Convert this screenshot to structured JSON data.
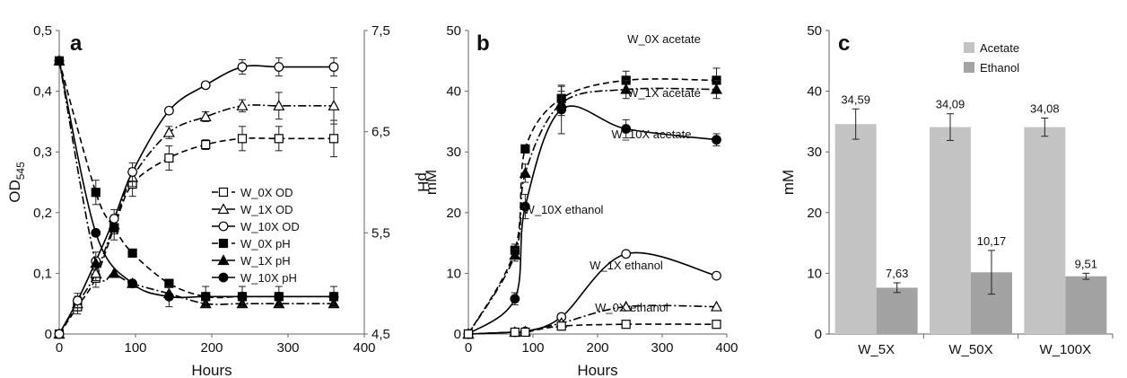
{
  "chart_data": [
    {
      "panel": "a",
      "type": "line",
      "xlabel": "Hours",
      "ylabel": "OD",
      "ylabel_sub": "545",
      "y2label": "pH",
      "xlim": [
        0,
        400
      ],
      "xticks": [
        "0",
        "100",
        "200",
        "300",
        "400"
      ],
      "ylim": [
        0,
        0.5
      ],
      "yticks": [
        "0",
        "0,1",
        "0,2",
        "0,3",
        "0,4",
        "0,5"
      ],
      "y2lim": [
        4.5,
        7.5
      ],
      "y2ticks": [
        "4,5",
        "5,5",
        "6,5",
        "7,5"
      ],
      "legend_position": "center-right",
      "series": [
        {
          "name": "W_0X OD",
          "axis": "left",
          "marker": "open-square",
          "dash": "dashed",
          "x": [
            0,
            24,
            48,
            72,
            96,
            144,
            192,
            240,
            288,
            360
          ],
          "y": [
            0,
            0.045,
            0.092,
            0.175,
            0.247,
            0.29,
            0.312,
            0.322,
            0.322,
            0.322
          ],
          "err": [
            0,
            0.012,
            0.015,
            0.02,
            0.02,
            0.02,
            0.008,
            0.02,
            0.02,
            0.03
          ]
        },
        {
          "name": "W_1X OD",
          "axis": "left",
          "marker": "open-triangle",
          "dash": "dashdot",
          "x": [
            0,
            24,
            48,
            72,
            96,
            144,
            192,
            240,
            288,
            360
          ],
          "y": [
            0,
            0.05,
            0.1,
            0.18,
            0.258,
            0.332,
            0.358,
            0.376,
            0.376,
            0.376
          ],
          "err": [
            0,
            0.012,
            0.012,
            0.015,
            0.015,
            0.01,
            0.008,
            0.01,
            0.022,
            0.03
          ]
        },
        {
          "name": "W_10X OD",
          "axis": "left",
          "marker": "open-circle",
          "dash": "solid",
          "x": [
            0,
            24,
            48,
            72,
            96,
            144,
            192,
            240,
            288,
            360
          ],
          "y": [
            0,
            0.055,
            0.12,
            0.19,
            0.267,
            0.368,
            0.41,
            0.44,
            0.44,
            0.44
          ],
          "err": [
            0,
            0.012,
            0.015,
            0.015,
            0.015,
            0.005,
            0.005,
            0.012,
            0.015,
            0.015
          ]
        },
        {
          "name": "W_0X pH",
          "axis": "right",
          "marker": "filled-square",
          "dash": "dashed",
          "x": [
            0,
            48,
            72,
            96,
            144,
            192,
            240,
            288,
            360
          ],
          "y": [
            7.2,
            5.9,
            5.55,
            5.3,
            5.0,
            4.87,
            4.87,
            4.87,
            4.87
          ],
          "err": [
            0,
            0.12,
            0,
            0,
            0,
            0,
            0,
            0,
            0
          ]
        },
        {
          "name": "W_1X pH",
          "axis": "right",
          "marker": "filled-triangle",
          "dash": "dashdot",
          "x": [
            0,
            48,
            72,
            96,
            144,
            192,
            240,
            288,
            360
          ],
          "y": [
            7.2,
            5.2,
            5.1,
            5.0,
            4.9,
            4.8,
            4.8,
            4.8,
            4.8
          ],
          "err": [
            0,
            0,
            0,
            0,
            0,
            0,
            0,
            0,
            0
          ]
        },
        {
          "name": "W_10X pH",
          "axis": "right",
          "marker": "filled-circle",
          "dash": "solid",
          "x": [
            0,
            48,
            96,
            144,
            192,
            240,
            288,
            360
          ],
          "y": [
            7.2,
            5.5,
            5.0,
            4.87,
            4.87,
            4.87,
            4.87,
            4.87
          ],
          "err": [
            0,
            0,
            0,
            0.1,
            0.1,
            0.1,
            0.1,
            0.1
          ]
        }
      ]
    },
    {
      "panel": "b",
      "type": "line",
      "xlabel": "Hours",
      "ylabel": "mM",
      "xlim": [
        0,
        400
      ],
      "xticks": [
        "0",
        "100",
        "200",
        "300",
        "400"
      ],
      "ylim": [
        0,
        50
      ],
      "yticks": [
        "0",
        "10",
        "20",
        "30",
        "40",
        "50"
      ],
      "series": [
        {
          "name": "W_0X acetate",
          "marker": "filled-square",
          "dash": "dashed",
          "x": [
            0,
            72,
            88,
            144,
            244,
            384
          ],
          "y": [
            0,
            13.8,
            30.5,
            38.8,
            41.8,
            41.8
          ],
          "err": [
            0,
            1.0,
            0,
            2.0,
            1.5,
            2.0
          ]
        },
        {
          "name": "W_1X acetate",
          "marker": "filled-triangle",
          "dash": "dashdot",
          "x": [
            0,
            72,
            88,
            144,
            244,
            384
          ],
          "y": [
            0,
            13.0,
            26.5,
            38.0,
            40.3,
            40.3
          ],
          "err": [
            0,
            1.0,
            1.5,
            2.0,
            1.5,
            1.5
          ]
        },
        {
          "name": "W_10X acetate",
          "marker": "filled-circle",
          "dash": "solid",
          "x": [
            0,
            72,
            88,
            144,
            244,
            384
          ],
          "y": [
            0,
            5.8,
            21.0,
            37.0,
            33.8,
            32.0
          ],
          "err": [
            0,
            1.0,
            2.0,
            4.0,
            1.5,
            1.0
          ]
        },
        {
          "name": "W_10X ethanol",
          "marker": "open-circle",
          "dash": "solid",
          "x": [
            0,
            72,
            88,
            144,
            244,
            384
          ],
          "y": [
            0,
            0.3,
            0.4,
            2.8,
            13.2,
            9.6
          ],
          "err": [
            0,
            0.5,
            0.5,
            0.5,
            0,
            0
          ]
        },
        {
          "name": "W_1X ethanol",
          "marker": "open-triangle",
          "dash": "dashdot",
          "x": [
            0,
            72,
            88,
            144,
            244,
            384
          ],
          "y": [
            0,
            0.3,
            0.4,
            1.8,
            4.5,
            4.5
          ],
          "err": [
            0,
            0,
            0,
            0,
            0,
            0
          ]
        },
        {
          "name": "W_0X ethanol",
          "marker": "open-square",
          "dash": "dashed",
          "x": [
            0,
            72,
            88,
            144,
            244,
            384
          ],
          "y": [
            0,
            0.3,
            0.3,
            1.3,
            1.6,
            1.6
          ],
          "err": [
            0,
            0,
            0,
            0,
            0.5,
            0.5
          ]
        }
      ]
    },
    {
      "panel": "c",
      "type": "bar",
      "ylabel": "mM",
      "ylim": [
        0,
        50
      ],
      "yticks": [
        "0",
        "10",
        "20",
        "30",
        "40",
        "50"
      ],
      "legend_position": "top-right",
      "categories": [
        "W_5X",
        "W_50X",
        "W_100X"
      ],
      "series": [
        {
          "name": "Acetate",
          "color": "#c4c4c4",
          "values": [
            34.59,
            34.09,
            34.08
          ],
          "labels": [
            "34,59",
            "34,09",
            "34,08"
          ],
          "err": [
            2.5,
            2.2,
            1.5
          ]
        },
        {
          "name": "Ethanol",
          "color": "#a3a3a3",
          "values": [
            7.63,
            10.17,
            9.51
          ],
          "labels": [
            "7,63",
            "10,17",
            "9,51"
          ],
          "err": [
            0.8,
            3.6,
            0.5
          ]
        }
      ]
    }
  ]
}
